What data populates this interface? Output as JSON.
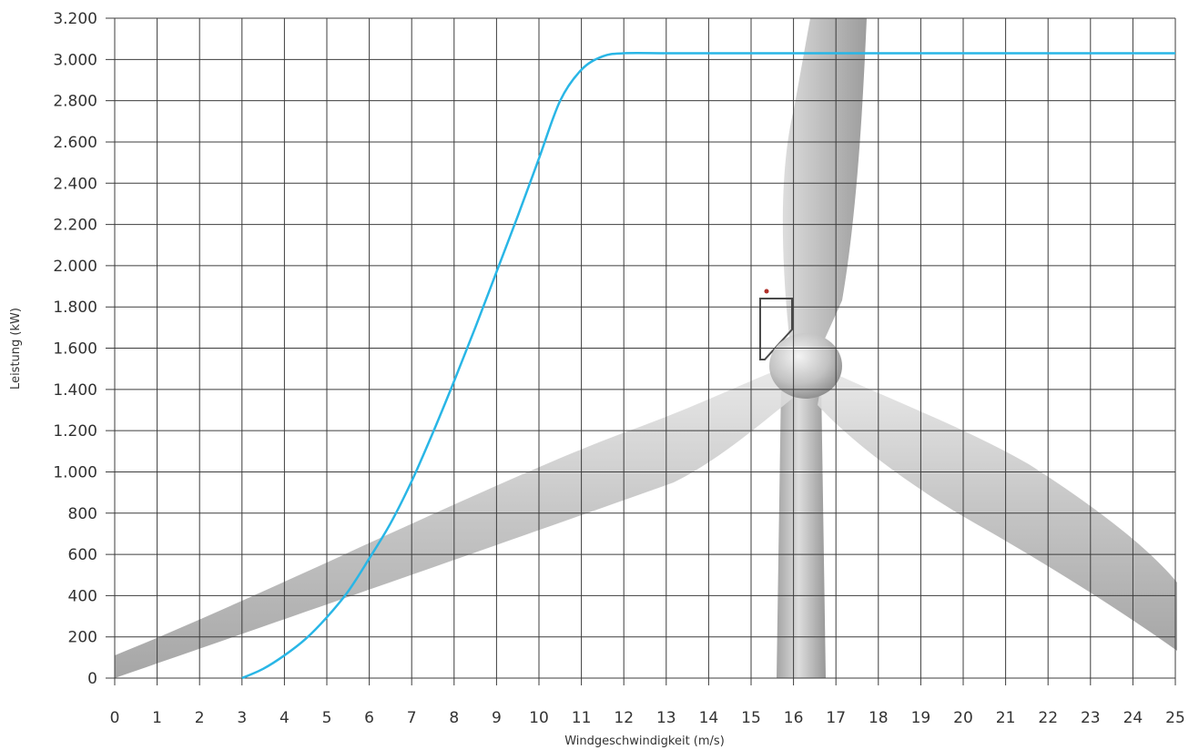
{
  "chart_data": {
    "type": "line",
    "xlabel": "Windgeschwindigkeit (m/s)",
    "ylabel": "Leistung (kW)",
    "xlim": [
      0,
      25
    ],
    "ylim": [
      0,
      3200
    ],
    "grid": true,
    "x_ticks": [
      0,
      1,
      2,
      3,
      4,
      5,
      6,
      7,
      8,
      9,
      10,
      11,
      12,
      13,
      14,
      15,
      16,
      17,
      18,
      19,
      20,
      21,
      22,
      23,
      24,
      25
    ],
    "x_tick_labels": [
      "0",
      "1",
      "2",
      "3",
      "4",
      "5",
      "6",
      "7",
      "8",
      "9",
      "10",
      "11",
      "12",
      "13",
      "14",
      "15",
      "16",
      "17",
      "18",
      "19",
      "20",
      "21",
      "22",
      "23",
      "24",
      "25"
    ],
    "y_ticks": [
      0,
      200,
      400,
      600,
      800,
      1000,
      1200,
      1400,
      1600,
      1800,
      2000,
      2200,
      2400,
      2600,
      2800,
      3000,
      3200
    ],
    "y_tick_labels": [
      "0",
      "200",
      "400",
      "600",
      "800",
      "1.000",
      "1.200",
      "1.400",
      "1.600",
      "1.800",
      "2.000",
      "2.200",
      "2.400",
      "2.600",
      "2.800",
      "3.000",
      "3.200"
    ],
    "series": [
      {
        "color": "#29b6e6",
        "x": [
          3,
          3.5,
          4,
          4.5,
          5,
          5.5,
          6,
          6.5,
          7,
          7.5,
          8,
          8.5,
          9,
          9.5,
          10,
          10.5,
          11,
          11.5,
          12,
          13,
          14,
          15,
          16,
          17,
          18,
          19,
          20,
          21,
          22,
          23,
          24,
          25
        ],
        "y": [
          0,
          45,
          110,
          190,
          295,
          420,
          580,
          750,
          955,
          1190,
          1440,
          1700,
          1970,
          2240,
          2520,
          2800,
          2950,
          3015,
          3030,
          3030,
          3030,
          3030,
          3030,
          3030,
          3030,
          3030,
          3030,
          3030,
          3030,
          3030,
          3030,
          3030
        ]
      }
    ],
    "background_image": "wind-turbine"
  }
}
